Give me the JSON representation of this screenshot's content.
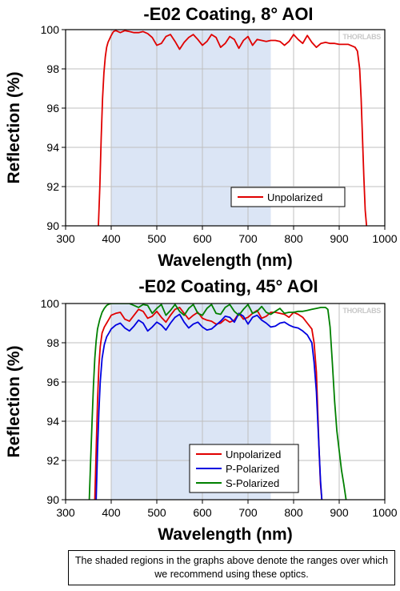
{
  "watermark": "THORLABS",
  "colors": {
    "shade": "#dbe5f5",
    "grid": "#bfbfbf"
  },
  "note": "The shaded regions in the graphs above denote the ranges over which we recommend using these optics.",
  "chart_data": [
    {
      "type": "line",
      "title": "-E02 Coating, 8° AOI",
      "xlabel": "Wavelength (nm)",
      "ylabel": "Reflection (%)",
      "xlim": [
        300,
        1000
      ],
      "ylim": [
        90,
        100
      ],
      "xticks": [
        300,
        400,
        500,
        600,
        700,
        800,
        900,
        1000
      ],
      "yticks": [
        90,
        92,
        94,
        96,
        98,
        100
      ],
      "grid": true,
      "legend_position": "bottom-right",
      "shaded_range": [
        400,
        750
      ],
      "series": [
        {
          "name": "Unpolarized",
          "color": "#e00000",
          "x": [
            370,
            372,
            375,
            378,
            381,
            384,
            387,
            390,
            393,
            396,
            400,
            405,
            410,
            420,
            430,
            440,
            450,
            460,
            470,
            480,
            490,
            500,
            510,
            520,
            530,
            540,
            550,
            560,
            570,
            580,
            590,
            600,
            610,
            620,
            630,
            640,
            650,
            660,
            670,
            680,
            690,
            700,
            710,
            720,
            730,
            740,
            750,
            760,
            770,
            780,
            790,
            800,
            810,
            820,
            830,
            840,
            850,
            860,
            870,
            880,
            890,
            900,
            910,
            920,
            930,
            935,
            940,
            945,
            948,
            951,
            954,
            957,
            960,
            965
          ],
          "y": [
            89,
            90,
            92,
            94.5,
            96.5,
            97.8,
            98.6,
            99.1,
            99.35,
            99.5,
            99.7,
            99.9,
            99.95,
            99.85,
            99.95,
            99.9,
            99.85,
            99.85,
            99.9,
            99.8,
            99.6,
            99.2,
            99.3,
            99.65,
            99.75,
            99.4,
            99.0,
            99.35,
            99.6,
            99.75,
            99.5,
            99.2,
            99.4,
            99.75,
            99.6,
            99.1,
            99.3,
            99.65,
            99.5,
            99.05,
            99.45,
            99.65,
            99.2,
            99.5,
            99.45,
            99.4,
            99.45,
            99.45,
            99.4,
            99.2,
            99.4,
            99.75,
            99.5,
            99.3,
            99.7,
            99.35,
            99.1,
            99.3,
            99.35,
            99.3,
            99.3,
            99.25,
            99.25,
            99.25,
            99.15,
            99.1,
            98.9,
            98.0,
            96.5,
            94.5,
            92.5,
            90.8,
            90.0,
            89
          ]
        }
      ]
    },
    {
      "type": "line",
      "title": "-E02 Coating, 45° AOI",
      "xlabel": "Wavelength (nm)",
      "ylabel": "Reflection (%)",
      "xlim": [
        300,
        1000
      ],
      "ylim": [
        90,
        100
      ],
      "xticks": [
        300,
        400,
        500,
        600,
        700,
        800,
        900,
        1000
      ],
      "yticks": [
        90,
        92,
        94,
        96,
        98,
        100
      ],
      "grid": true,
      "legend_position": "bottom-right",
      "shaded_range": [
        400,
        750
      ],
      "series": [
        {
          "name": "Unpolarized",
          "color": "#e00000",
          "x": [
            362,
            364,
            367,
            370,
            373,
            376,
            380,
            385,
            390,
            395,
            400,
            410,
            420,
            430,
            440,
            450,
            460,
            470,
            480,
            490,
            500,
            510,
            520,
            530,
            540,
            550,
            560,
            570,
            580,
            590,
            600,
            610,
            620,
            630,
            640,
            650,
            660,
            670,
            680,
            690,
            700,
            710,
            720,
            730,
            740,
            750,
            760,
            770,
            780,
            790,
            800,
            810,
            820,
            830,
            840,
            845,
            850,
            853,
            856,
            859,
            862,
            865
          ],
          "y": [
            89,
            90,
            92.5,
            95,
            96.8,
            97.8,
            98.5,
            98.8,
            99.0,
            99.2,
            99.4,
            99.5,
            99.55,
            99.2,
            99.1,
            99.4,
            99.7,
            99.6,
            99.25,
            99.35,
            99.6,
            99.3,
            99.05,
            99.4,
            99.7,
            99.8,
            99.5,
            99.2,
            99.4,
            99.55,
            99.25,
            99.15,
            99.1,
            98.95,
            99.0,
            99.2,
            99.05,
            99.15,
            99.5,
            99.2,
            99.3,
            99.5,
            99.65,
            99.25,
            99.35,
            99.55,
            99.55,
            99.5,
            99.45,
            99.3,
            99.55,
            99.45,
            99.3,
            99.0,
            98.7,
            98.0,
            96.5,
            94.5,
            92.5,
            90.8,
            90.0,
            89
          ]
        },
        {
          "name": "P-Polarized",
          "color": "#0000e0",
          "x": [
            365,
            367,
            370,
            373,
            376,
            380,
            385,
            390,
            395,
            400,
            410,
            420,
            430,
            440,
            450,
            460,
            470,
            480,
            490,
            500,
            510,
            520,
            530,
            540,
            550,
            560,
            570,
            580,
            590,
            600,
            610,
            620,
            630,
            640,
            650,
            660,
            670,
            680,
            690,
            700,
            710,
            720,
            730,
            740,
            750,
            760,
            770,
            780,
            790,
            800,
            810,
            820,
            830,
            840,
            845,
            850,
            853,
            856,
            859,
            862,
            865
          ],
          "y": [
            89,
            90,
            92.5,
            94.5,
            96.0,
            97.2,
            97.9,
            98.3,
            98.5,
            98.7,
            98.9,
            99.0,
            98.75,
            98.6,
            98.85,
            99.15,
            99.0,
            98.6,
            98.8,
            99.05,
            98.9,
            98.65,
            99.0,
            99.3,
            99.45,
            99.05,
            98.75,
            98.95,
            99.05,
            98.8,
            98.65,
            98.7,
            98.9,
            99.1,
            99.35,
            99.3,
            99.05,
            99.5,
            99.35,
            98.95,
            99.3,
            99.4,
            99.15,
            99.0,
            98.8,
            98.85,
            99.0,
            99.05,
            98.9,
            98.8,
            98.75,
            98.6,
            98.4,
            98.0,
            97.0,
            95.5,
            94.0,
            92.5,
            91.0,
            90.0,
            89
          ]
        },
        {
          "name": "S-Polarized",
          "color": "#008000",
          "x": [
            350,
            352,
            355,
            358,
            361,
            364,
            367,
            370,
            375,
            380,
            385,
            390,
            395,
            400,
            410,
            420,
            430,
            440,
            450,
            460,
            470,
            480,
            490,
            500,
            510,
            520,
            530,
            540,
            550,
            560,
            570,
            580,
            590,
            600,
            610,
            620,
            630,
            640,
            650,
            660,
            670,
            680,
            690,
            700,
            710,
            720,
            730,
            740,
            750,
            760,
            770,
            780,
            790,
            800,
            810,
            820,
            830,
            840,
            850,
            860,
            870,
            875,
            880,
            885,
            890,
            895,
            900,
            905,
            910,
            915,
            920
          ],
          "y": [
            89,
            90,
            92.0,
            94.0,
            95.8,
            97.2,
            98.1,
            98.7,
            99.2,
            99.55,
            99.75,
            99.9,
            99.97,
            100.0,
            100.0,
            100.0,
            100.0,
            100.0,
            99.9,
            99.8,
            99.95,
            99.9,
            99.5,
            99.75,
            99.95,
            99.4,
            99.65,
            99.95,
            99.6,
            99.4,
            99.75,
            99.95,
            99.5,
            99.4,
            99.75,
            99.95,
            99.5,
            99.45,
            99.8,
            99.95,
            99.6,
            99.4,
            99.7,
            99.95,
            99.5,
            99.6,
            99.85,
            99.55,
            99.45,
            99.6,
            99.75,
            99.5,
            99.55,
            99.55,
            99.6,
            99.6,
            99.65,
            99.7,
            99.75,
            99.8,
            99.8,
            99.7,
            98.8,
            97.0,
            95.0,
            93.5,
            92.5,
            91.5,
            90.8,
            90.0,
            89
          ]
        }
      ]
    }
  ]
}
